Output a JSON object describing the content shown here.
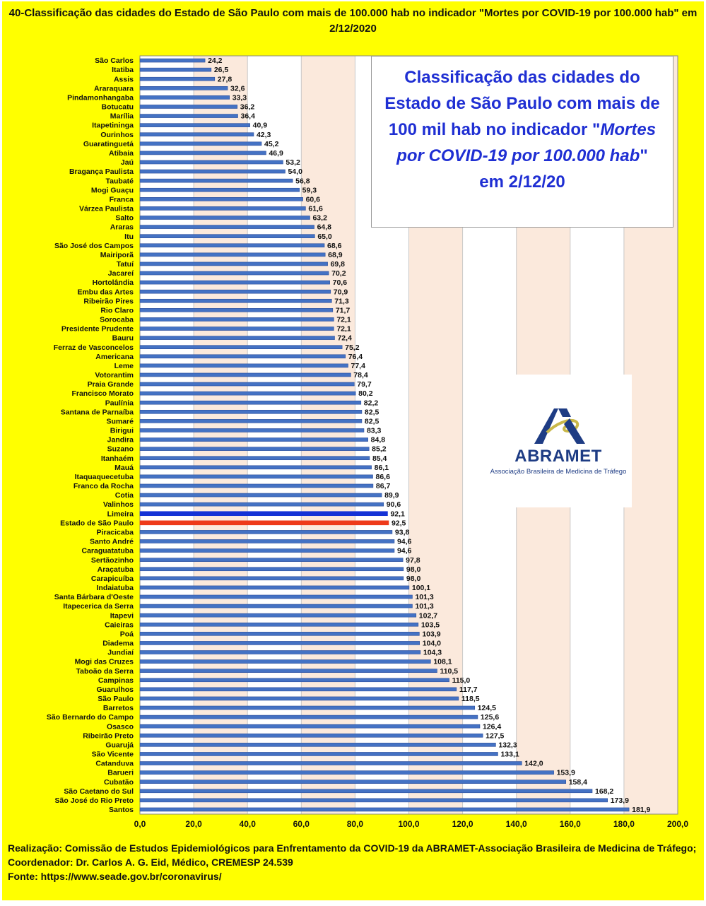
{
  "title": "40-Classificação das cidades do Estado de São Paulo com mais de 100.000 hab no indicador \"Mortes por COVID-19 por 100.000 hab\" em 2/12/2020",
  "infobox": {
    "line1": "Classificação das cidades do",
    "line2": "Estado de São Paulo com mais de",
    "line3a": "100 mil hab  no indicador \"",
    "line3b": "Mortes",
    "line4a": "por COVID-19 por 100.000 hab",
    "line4b": "\"",
    "line5": "em 2/12/20"
  },
  "logo": {
    "name": "ABRAMET",
    "subtitle": "Associação Brasileira de Medicina de Tráfego"
  },
  "footer": {
    "line1": "Realização: Comissão de Estudos Epidemiológicos para Enfrentamento da COVID-19 da ABRAMET-Associação Brasileira de Medicina de Tráfego;  Coordenador: Dr. Carlos A. G. Eid, Médico, CREMESP 24.539",
    "line2": "Fonte: https://www.seade.gov.br/coronavirus/"
  },
  "colors": {
    "background": "#ffff00",
    "plot_area": "#fbe9dc",
    "bar_default": "#4472c4",
    "bar_limeira": "#1432d6",
    "bar_estado": "#ee3a1a",
    "infobox_text": "#1f2fd3",
    "logo": "#1e3c84"
  },
  "chart_data": {
    "type": "bar",
    "orientation": "horizontal",
    "xlim": [
      0,
      200
    ],
    "x_ticks": [
      "0,0",
      "20,0",
      "40,0",
      "60,0",
      "80,0",
      "100,0",
      "120,0",
      "140,0",
      "160,0",
      "180,0",
      "200,0"
    ],
    "highlight": {
      "Limeira": "bar_limeira",
      "Estado de São Paulo": "bar_estado"
    },
    "categories": [
      "São Carlos",
      "Itatiba",
      "Assis",
      "Araraquara",
      "Pindamonhangaba",
      "Botucatu",
      "Marília",
      "Itapetininga",
      "Ourinhos",
      "Guaratinguetá",
      "Atibaia",
      "Jaú",
      "Bragança Paulista",
      "Taubaté",
      "Mogi Guaçu",
      "Franca",
      "Várzea Paulista",
      "Salto",
      "Araras",
      "Itu",
      "São José dos Campos",
      "Mairiporã",
      "Tatuí",
      "Jacareí",
      "Hortolândia",
      "Embu das Artes",
      "Ribeirão Pires",
      "Rio Claro",
      "Sorocaba",
      "Presidente Prudente",
      "Bauru",
      "Ferraz de Vasconcelos",
      "Americana",
      "Leme",
      "Votorantim",
      "Praia Grande",
      "Francisco Morato",
      "Paulínia",
      "Santana de Parnaíba",
      "Sumaré",
      "Birigui",
      "Jandira",
      "Suzano",
      "Itanhaém",
      "Mauá",
      "Itaquaquecetuba",
      "Franco da Rocha",
      "Cotia",
      "Valinhos",
      "Limeira",
      "Estado de São Paulo",
      "Piracicaba",
      "Santo André",
      "Caraguatatuba",
      "Sertãozinho",
      "Araçatuba",
      "Carapicuíba",
      "Indaiatuba",
      "Santa Bárbara d'Oeste",
      "Itapecerica da Serra",
      "Itapevi",
      "Caieiras",
      "Poá",
      "Diadema",
      "Jundiaí",
      "Mogi das Cruzes",
      "Taboão da Serra",
      "Campinas",
      "Guarulhos",
      "São Paulo",
      "Barretos",
      "São Bernardo do Campo",
      "Osasco",
      "Ribeirão Preto",
      "Guarujá",
      "São Vicente",
      "Catanduva",
      "Barueri",
      "Cubatão",
      "São Caetano do Sul",
      "São José do Rio Preto",
      "Santos"
    ],
    "values": [
      24.2,
      26.5,
      27.8,
      32.6,
      33.3,
      36.2,
      36.4,
      40.9,
      42.3,
      45.2,
      46.9,
      53.2,
      54.0,
      56.8,
      59.3,
      60.6,
      61.6,
      63.2,
      64.8,
      65.0,
      68.6,
      68.9,
      69.8,
      70.2,
      70.6,
      70.9,
      71.3,
      71.7,
      72.1,
      72.1,
      72.4,
      75.2,
      76.4,
      77.4,
      78.4,
      79.7,
      80.2,
      82.2,
      82.5,
      82.5,
      83.3,
      84.8,
      85.2,
      85.4,
      86.1,
      86.6,
      86.7,
      89.9,
      90.6,
      92.1,
      92.5,
      93.8,
      94.6,
      94.6,
      97.8,
      98.0,
      98.0,
      100.1,
      101.3,
      101.3,
      102.7,
      103.5,
      103.9,
      104.0,
      104.3,
      108.1,
      110.5,
      115.0,
      117.7,
      118.5,
      124.5,
      125.6,
      126.4,
      127.5,
      132.3,
      133.1,
      142.0,
      153.9,
      158.4,
      168.2,
      173.9,
      181.9
    ],
    "value_labels": [
      "24,2",
      "26,5",
      "27,8",
      "32,6",
      "33,3",
      "36,2",
      "36,4",
      "40,9",
      "42,3",
      "45,2",
      "46,9",
      "53,2",
      "54,0",
      "56,8",
      "59,3",
      "60,6",
      "61,6",
      "63,2",
      "64,8",
      "65,0",
      "68,6",
      "68,9",
      "69,8",
      "70,2",
      "70,6",
      "70,9",
      "71,3",
      "71,7",
      "72,1",
      "72,1",
      "72,4",
      "75,2",
      "76,4",
      "77,4",
      "78,4",
      "79,7",
      "80,2",
      "82,2",
      "82,5",
      "82,5",
      "83,3",
      "84,8",
      "85,2",
      "85,4",
      "86,1",
      "86,6",
      "86,7",
      "89,9",
      "90,6",
      "92,1",
      "92,5",
      "93,8",
      "94,6",
      "94,6",
      "97,8",
      "98,0",
      "98,0",
      "100,1",
      "101,3",
      "101,3",
      "102,7",
      "103,5",
      "103,9",
      "104,0",
      "104,3",
      "108,1",
      "110,5",
      "115,0",
      "117,7",
      "118,5",
      "124,5",
      "125,6",
      "126,4",
      "127,5",
      "132,3",
      "133,1",
      "142,0",
      "153,9",
      "158,4",
      "168,2",
      "173,9",
      "181,9"
    ]
  }
}
